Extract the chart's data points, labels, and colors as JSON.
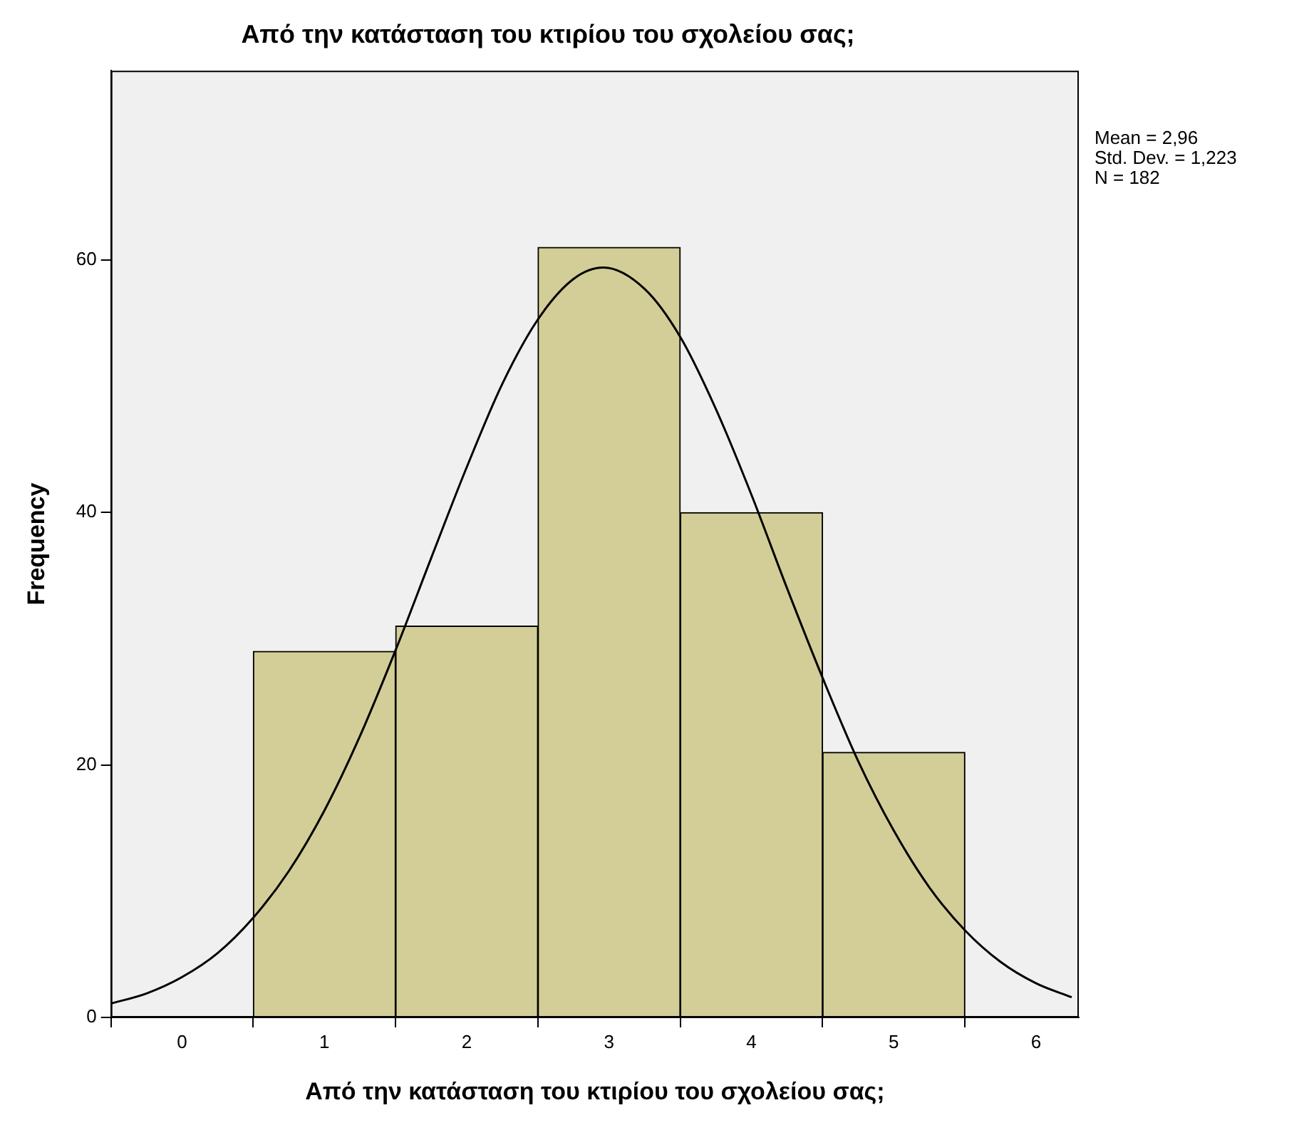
{
  "chart_data": {
    "type": "histogram",
    "title": "Από την κατάσταση του κτιρίου του σχολείου σας;",
    "xlabel": "Από την κατάσταση του κτιρίου του σχολείου σας;",
    "ylabel": "Frequency",
    "bins": [
      0.5,
      1.5,
      2.5,
      3.5,
      4.5,
      5.5
    ],
    "values": [
      29,
      31,
      61,
      40,
      21
    ],
    "color": "#d3ce97",
    "series": [
      {
        "type": "line",
        "color": "#000000",
        "marker": "none",
        "x": [
          -0.5,
          -0.25,
          0,
          0.25,
          0.5,
          0.75,
          1,
          1.25,
          1.5,
          1.75,
          2,
          2.25,
          2.5,
          2.75,
          2.96,
          3.25,
          3.5,
          3.75,
          4,
          4.25,
          4.5,
          4.75,
          5,
          5.25,
          5.5,
          5.75,
          6,
          6.25
        ],
        "values": [
          1.1,
          1.9,
          3.2,
          5.1,
          7.9,
          11.6,
          16.4,
          22.3,
          29.1,
          36.4,
          43.6,
          50.2,
          55.3,
          58.5,
          59.4,
          57.7,
          53.9,
          48.2,
          41.4,
          34.0,
          26.9,
          20.3,
          14.8,
          10.3,
          6.9,
          4.4,
          2.7,
          1.6
        ]
      }
    ],
    "xlim": [
      -0.5,
      6.3
    ],
    "xticks": [
      0,
      1,
      2,
      3,
      4,
      5,
      6
    ],
    "ylim": [
      0,
      75
    ],
    "yticks": [
      0,
      20,
      40,
      60
    ],
    "grid": false,
    "legend": false,
    "annotations": [
      "Mean = 2,96",
      "Std. Dev. = 1,223",
      "N = 182"
    ]
  }
}
